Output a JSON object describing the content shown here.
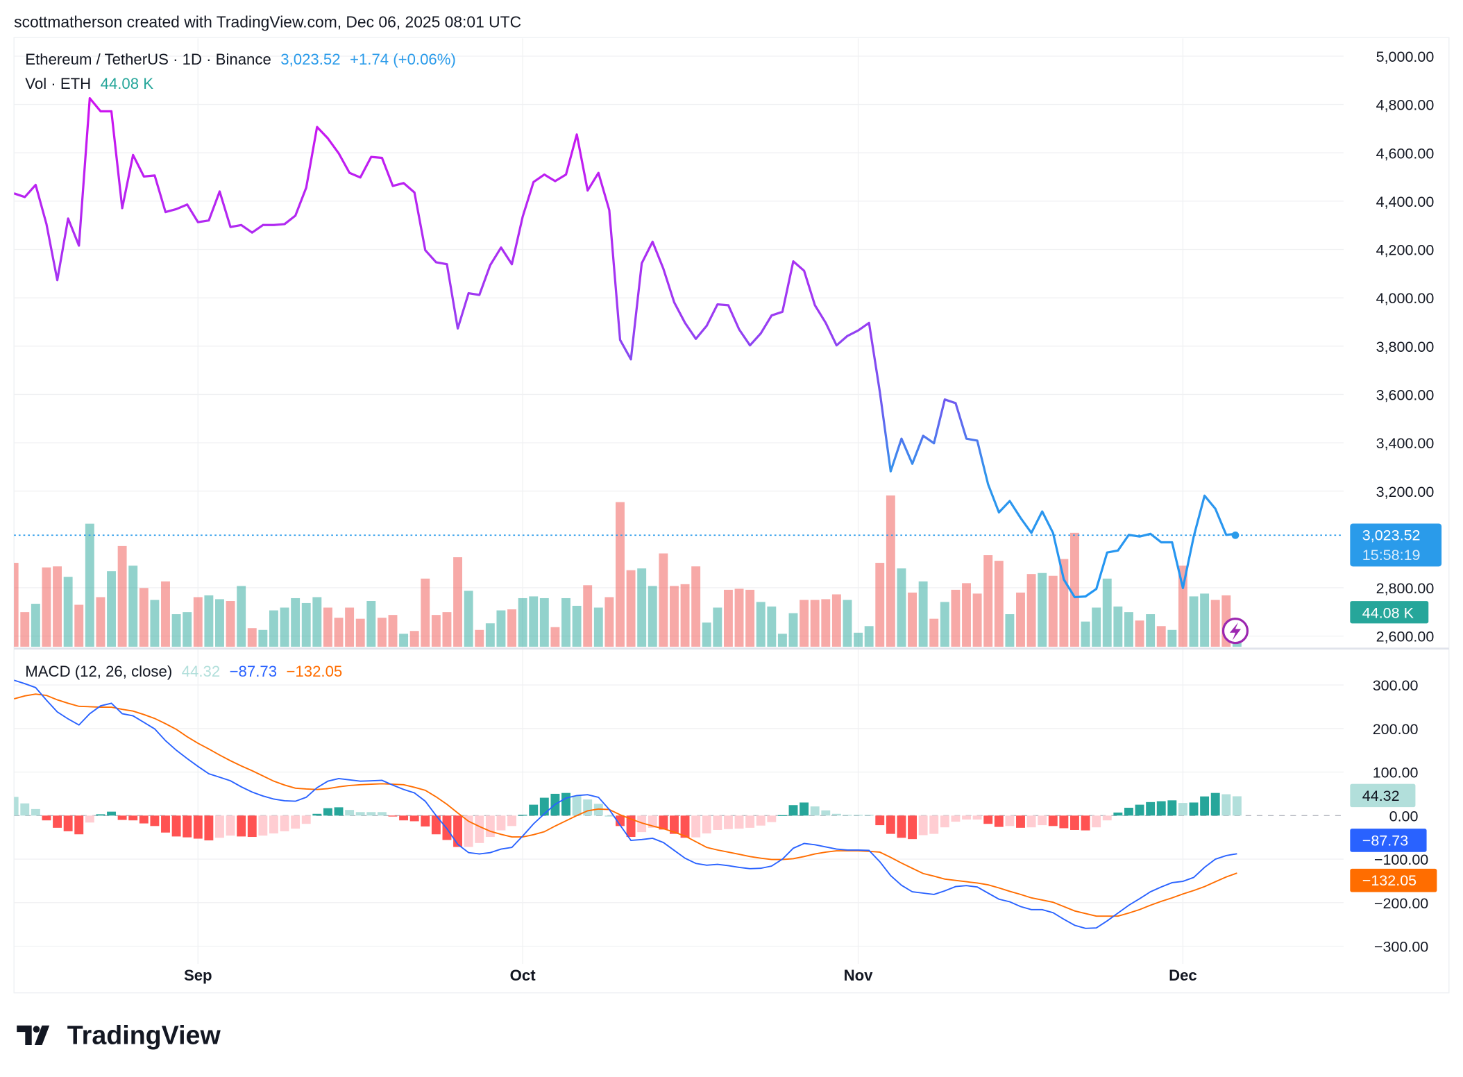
{
  "header": {
    "attribution": "scottmatherson created with TradingView.com, Dec 06, 2025 08:01 UTC"
  },
  "legend": {
    "symbol": "Ethereum / TetherUS · 1D · Binance",
    "last_price": "3,023.52",
    "change": "+1.74 (+0.06%)",
    "volume_label": "Vol · ETH",
    "volume_value": "44.08 K",
    "macd_label": "MACD (12, 26, close)",
    "macd_hist": "44.32",
    "macd_line": "−87.73",
    "macd_signal": "−132.05"
  },
  "markers": {
    "price": "3,023.52",
    "countdown": "15:58:19",
    "volume": "44.08 K",
    "hist": "44.32",
    "macd": "−87.73",
    "signal": "−132.05"
  },
  "logo": {
    "text": "TradingView"
  },
  "colors": {
    "price_line_top": "#d010f0",
    "price_line_bottom": "#2196f3",
    "up": "#26a69a",
    "down": "#ef5350",
    "macd": "#2962ff",
    "signal": "#ff6d00",
    "hist_up_strong": "#26a69a",
    "hist_up_weak": "#b2dfdb",
    "hist_down_strong": "#ff5252",
    "hist_down_weak": "#ffcdd2"
  },
  "chart_data": [
    {
      "type": "line",
      "title": "Ethereum / TetherUS · 1D · Binance",
      "x_start": "2025-08-15",
      "x_end": "2025-12-06",
      "x_ticks": [
        "Sep",
        "Oct",
        "Nov",
        "Dec"
      ],
      "ylim": [
        2600,
        5000
      ],
      "y_ticks": [
        {
          "value": 5000,
          "label": "5,000.00"
        },
        {
          "value": 4800,
          "label": "4,800.00"
        },
        {
          "value": 4600,
          "label": "4,600.00"
        },
        {
          "value": 4400,
          "label": "4,400.00"
        },
        {
          "value": 4200,
          "label": "4,200.00"
        },
        {
          "value": 4000,
          "label": "4,000.00"
        },
        {
          "value": 3800,
          "label": "3,800.00"
        },
        {
          "value": 3600,
          "label": "3,600.00"
        },
        {
          "value": 3400,
          "label": "3,400.00"
        },
        {
          "value": 3200,
          "label": "3,200.00"
        },
        {
          "value": 2800,
          "label": "2,800.00"
        },
        {
          "value": 2600,
          "label": "2,600.00"
        }
      ],
      "grid": true,
      "close": [
        4432,
        4417,
        4467,
        4305,
        4073,
        4328,
        4216,
        4826,
        4772,
        4772,
        4371,
        4591,
        4502,
        4506,
        4355,
        4367,
        4386,
        4313,
        4320,
        4440,
        4293,
        4301,
        4270,
        4301,
        4301,
        4305,
        4340,
        4456,
        4707,
        4660,
        4598,
        4517,
        4498,
        4583,
        4579,
        4463,
        4475,
        4436,
        4197,
        4147,
        4139,
        3873,
        4019,
        4012,
        4135,
        4208,
        4139,
        4336,
        4479,
        4510,
        4483,
        4510,
        4676,
        4444,
        4517,
        4363,
        3826,
        3745,
        4143,
        4232,
        4120,
        3981,
        3896,
        3830,
        3884,
        3973,
        3969,
        3869,
        3803,
        3853,
        3927,
        3942,
        4151,
        4112,
        3969,
        3896,
        3803,
        3842,
        3865,
        3896,
        3610,
        3282,
        3417,
        3313,
        3429,
        3398,
        3579,
        3564,
        3417,
        3409,
        3228,
        3112,
        3159,
        3089,
        3027,
        3116,
        3027,
        2834,
        2761,
        2764,
        2795,
        2946,
        2954,
        3019,
        3012,
        3023,
        2988,
        2988,
        2799,
        3012,
        3181,
        3127,
        3019,
        3023.52
      ]
    },
    {
      "type": "bar",
      "name": "Vol · ETH",
      "unit": "K",
      "values": [
        330,
        136,
        169,
        312,
        316,
        275,
        165,
        484,
        195,
        297,
        396,
        319,
        231,
        184,
        257,
        128,
        136,
        195,
        202,
        187,
        180,
        239,
        73,
        66,
        143,
        154,
        191,
        172,
        195,
        154,
        114,
        154,
        110,
        180,
        114,
        125,
        51,
        62,
        268,
        125,
        136,
        352,
        220,
        66,
        92,
        143,
        147,
        191,
        198,
        191,
        77,
        191,
        161,
        242,
        154,
        195,
        569,
        301,
        308,
        239,
        367,
        239,
        246,
        316,
        95,
        154,
        224,
        228,
        224,
        176,
        158,
        51,
        132,
        184,
        184,
        187,
        206,
        184,
        55,
        81,
        330,
        595,
        308,
        213,
        257,
        110,
        176,
        224,
        250,
        209,
        360,
        338,
        128,
        213,
        286,
        290,
        279,
        345,
        448,
        99,
        154,
        268,
        158,
        136,
        103,
        128,
        81,
        66,
        319,
        198,
        209,
        184,
        202,
        44.08
      ]
    },
    {
      "type": "line",
      "name": "MACD (12, 26, close)",
      "ylim": [
        -340,
        340
      ],
      "y_ticks": [
        {
          "value": 300,
          "label": "300.00"
        },
        {
          "value": 200,
          "label": "200.00"
        },
        {
          "value": 100,
          "label": "100.00"
        },
        {
          "value": 0,
          "label": "0.00"
        },
        {
          "value": -100,
          "label": "−100.00"
        },
        {
          "value": -200,
          "label": "−200.00"
        },
        {
          "value": -300,
          "label": "−300.00"
        }
      ],
      "macd": [
        311,
        303,
        294,
        265,
        238,
        222,
        208,
        234,
        252,
        258,
        234,
        229,
        214,
        199,
        172,
        150,
        131,
        113,
        96,
        88,
        80,
        66,
        54,
        45,
        38,
        34,
        33,
        42,
        64,
        79,
        85,
        82,
        79,
        80,
        81,
        70,
        60,
        52,
        33,
        0,
        -30,
        -66,
        -85,
        -88,
        -85,
        -77,
        -73,
        -47,
        -19,
        4,
        26,
        40,
        46,
        48,
        42,
        14,
        -22,
        -57,
        -55,
        -52,
        -62,
        -80,
        -98,
        -110,
        -114,
        -112,
        -115,
        -119,
        -122,
        -121,
        -116,
        -100,
        -75,
        -64,
        -67,
        -72,
        -77,
        -79,
        -79,
        -80,
        -106,
        -138,
        -160,
        -175,
        -178,
        -181,
        -173,
        -163,
        -161,
        -164,
        -178,
        -192,
        -198,
        -209,
        -216,
        -216,
        -223,
        -238,
        -252,
        -259,
        -258,
        -242,
        -224,
        -206,
        -191,
        -175,
        -164,
        -154,
        -151,
        -142,
        -119,
        -100,
        -92,
        -87.73
      ],
      "signal": [
        268,
        275,
        279,
        276,
        266,
        258,
        251,
        250,
        249,
        249,
        244,
        240,
        232,
        223,
        211,
        198,
        181,
        166,
        153,
        139,
        126,
        114,
        103,
        91,
        79,
        70,
        63,
        61,
        60,
        62,
        66,
        69,
        71,
        72,
        73,
        72,
        71,
        65,
        58,
        43,
        26,
        6,
        -13,
        -25,
        -36,
        -43,
        -49,
        -49,
        -44,
        -37,
        -24,
        -12,
        0,
        11,
        15,
        14,
        2,
        -8,
        -17,
        -24,
        -30,
        -38,
        -47,
        -60,
        -73,
        -79,
        -84,
        -89,
        -94,
        -98,
        -101,
        -101,
        -99,
        -94,
        -88,
        -84,
        -81,
        -81,
        -81,
        -82,
        -84,
        -96,
        -109,
        -121,
        -133,
        -139,
        -146,
        -149,
        -152,
        -155,
        -159,
        -166,
        -174,
        -181,
        -189,
        -194,
        -199,
        -209,
        -219,
        -225,
        -231,
        -231,
        -231,
        -224,
        -216,
        -206,
        -197,
        -189,
        -180,
        -172,
        -163,
        -152,
        -141,
        -132.05
      ]
    }
  ]
}
